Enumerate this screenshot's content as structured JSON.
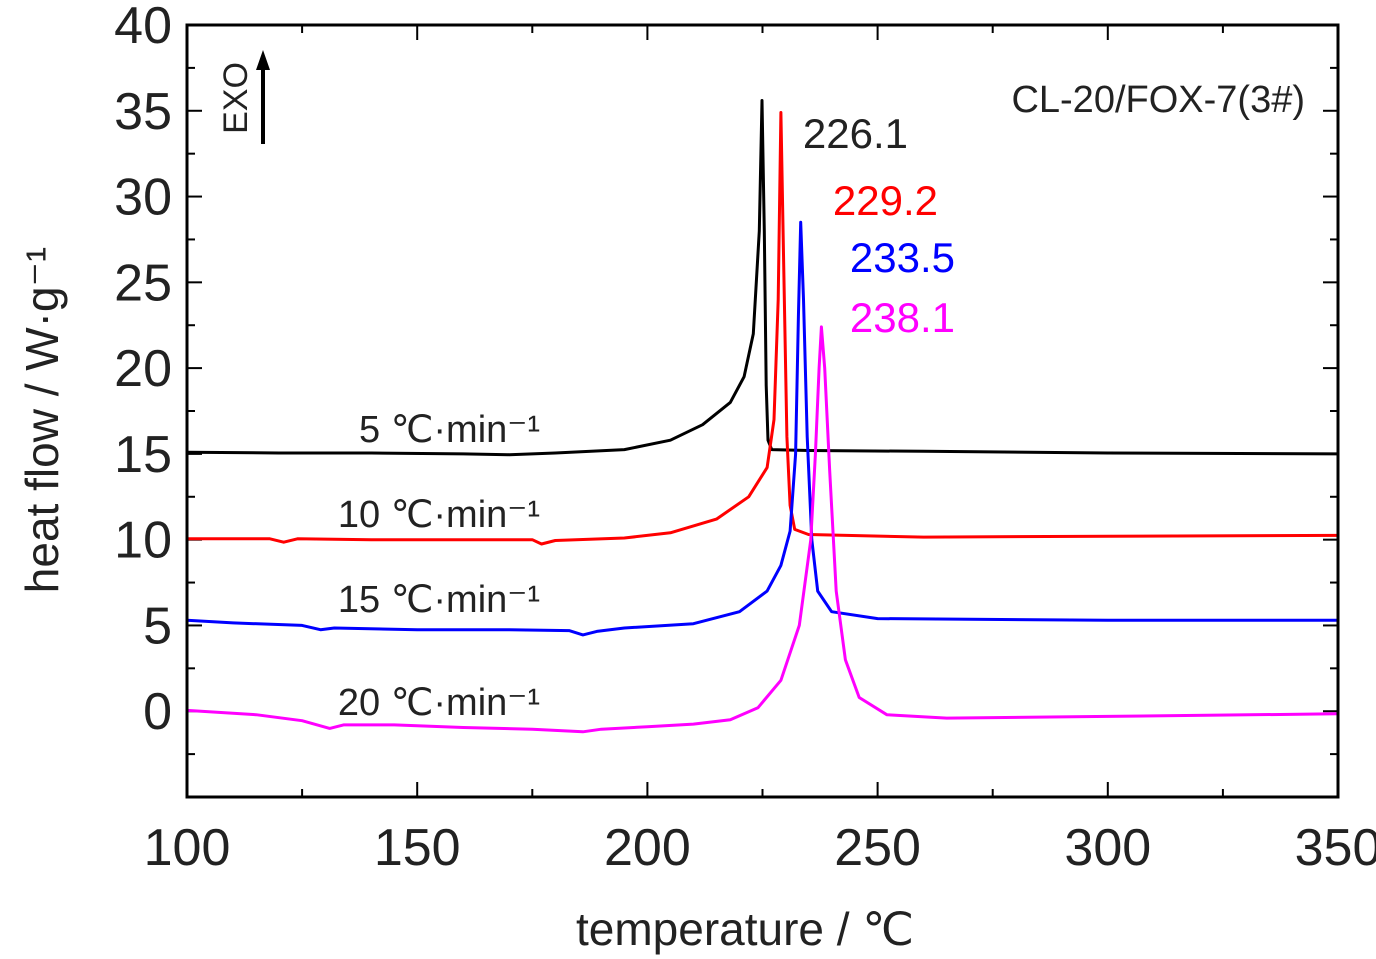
{
  "chart_data": {
    "type": "line",
    "xlabel": "temperature / ℃",
    "ylabel": "heat flow / W·g⁻¹",
    "xlim": [
      100,
      350
    ],
    "ylim": [
      -5,
      40
    ],
    "xticks": [
      100,
      150,
      200,
      250,
      300,
      350
    ],
    "yticks": [
      0,
      5,
      10,
      15,
      20,
      25,
      30,
      35,
      40
    ],
    "x_minor_step": 25,
    "y_minor_step": 2.5,
    "grid": false,
    "sample_label": "CL-20/FOX-7(3#)",
    "exo_label": "EXO",
    "series": [
      {
        "name": "5 ℃·min⁻¹",
        "rate_label": "5 ℃·min⁻¹",
        "peak_label": "226.1",
        "color": "#000000",
        "points": [
          [
            100,
            15.1
          ],
          [
            120,
            15.05
          ],
          [
            140,
            15.05
          ],
          [
            160,
            15.0
          ],
          [
            170,
            14.95
          ],
          [
            180,
            15.05
          ],
          [
            195,
            15.25
          ],
          [
            205,
            15.8
          ],
          [
            212,
            16.7
          ],
          [
            218,
            18.0
          ],
          [
            221,
            19.5
          ],
          [
            223,
            22.0
          ],
          [
            224.3,
            28.0
          ],
          [
            224.9,
            35.6
          ],
          [
            225.4,
            28.0
          ],
          [
            225.8,
            19.0
          ],
          [
            226.2,
            15.8
          ],
          [
            227,
            15.25
          ],
          [
            235,
            15.2
          ],
          [
            260,
            15.15
          ],
          [
            300,
            15.05
          ],
          [
            350,
            15.0
          ]
        ]
      },
      {
        "name": "10 ℃·min⁻¹",
        "rate_label": "10 ℃·min⁻¹",
        "peak_label": "229.2",
        "color": "#ff0000",
        "points": [
          [
            100,
            10.05
          ],
          [
            118,
            10.05
          ],
          [
            121,
            9.85
          ],
          [
            124,
            10.05
          ],
          [
            140,
            10.0
          ],
          [
            160,
            10.0
          ],
          [
            175,
            10.0
          ],
          [
            177,
            9.75
          ],
          [
            180,
            9.95
          ],
          [
            195,
            10.1
          ],
          [
            205,
            10.4
          ],
          [
            215,
            11.2
          ],
          [
            222,
            12.5
          ],
          [
            226,
            14.2
          ],
          [
            227.5,
            17.0
          ],
          [
            228.4,
            24.0
          ],
          [
            229.0,
            34.9
          ],
          [
            229.6,
            26.0
          ],
          [
            230.3,
            16.0
          ],
          [
            231.0,
            12.0
          ],
          [
            232,
            10.6
          ],
          [
            235,
            10.3
          ],
          [
            260,
            10.15
          ],
          [
            300,
            10.2
          ],
          [
            350,
            10.25
          ]
        ]
      },
      {
        "name": "15 ℃·min⁻¹",
        "rate_label": "15 ℃·min⁻¹",
        "peak_label": "233.5",
        "color": "#0000ff",
        "points": [
          [
            100,
            5.3
          ],
          [
            110,
            5.15
          ],
          [
            125,
            5.0
          ],
          [
            129,
            4.75
          ],
          [
            132,
            4.85
          ],
          [
            150,
            4.75
          ],
          [
            170,
            4.75
          ],
          [
            183,
            4.7
          ],
          [
            186,
            4.45
          ],
          [
            189,
            4.65
          ],
          [
            195,
            4.85
          ],
          [
            210,
            5.1
          ],
          [
            220,
            5.8
          ],
          [
            226,
            7.0
          ],
          [
            229,
            8.5
          ],
          [
            231,
            10.5
          ],
          [
            232.2,
            15.0
          ],
          [
            232.8,
            23.0
          ],
          [
            233.3,
            28.5
          ],
          [
            233.9,
            24.0
          ],
          [
            234.7,
            16.0
          ],
          [
            235.7,
            10.0
          ],
          [
            237,
            7.0
          ],
          [
            240,
            5.8
          ],
          [
            250,
            5.4
          ],
          [
            300,
            5.3
          ],
          [
            350,
            5.3
          ]
        ]
      },
      {
        "name": "20 ℃·min⁻¹",
        "rate_label": "20 ℃·min⁻¹",
        "peak_label": "238.1",
        "color": "#ff00ff",
        "points": [
          [
            100,
            0.05
          ],
          [
            115,
            -0.2
          ],
          [
            125,
            -0.55
          ],
          [
            131,
            -1.0
          ],
          [
            134,
            -0.8
          ],
          [
            145,
            -0.8
          ],
          [
            160,
            -0.95
          ],
          [
            175,
            -1.05
          ],
          [
            186,
            -1.2
          ],
          [
            190,
            -1.05
          ],
          [
            200,
            -0.9
          ],
          [
            210,
            -0.75
          ],
          [
            218,
            -0.5
          ],
          [
            224,
            0.2
          ],
          [
            229,
            1.8
          ],
          [
            233,
            5.0
          ],
          [
            235.5,
            10.0
          ],
          [
            236.5,
            15.0
          ],
          [
            237.3,
            20.0
          ],
          [
            237.8,
            22.4
          ],
          [
            238.5,
            20.0
          ],
          [
            239.6,
            14.0
          ],
          [
            241,
            7.0
          ],
          [
            243,
            3.0
          ],
          [
            246,
            0.8
          ],
          [
            252,
            -0.2
          ],
          [
            265,
            -0.4
          ],
          [
            300,
            -0.3
          ],
          [
            350,
            -0.15
          ]
        ]
      }
    ]
  }
}
